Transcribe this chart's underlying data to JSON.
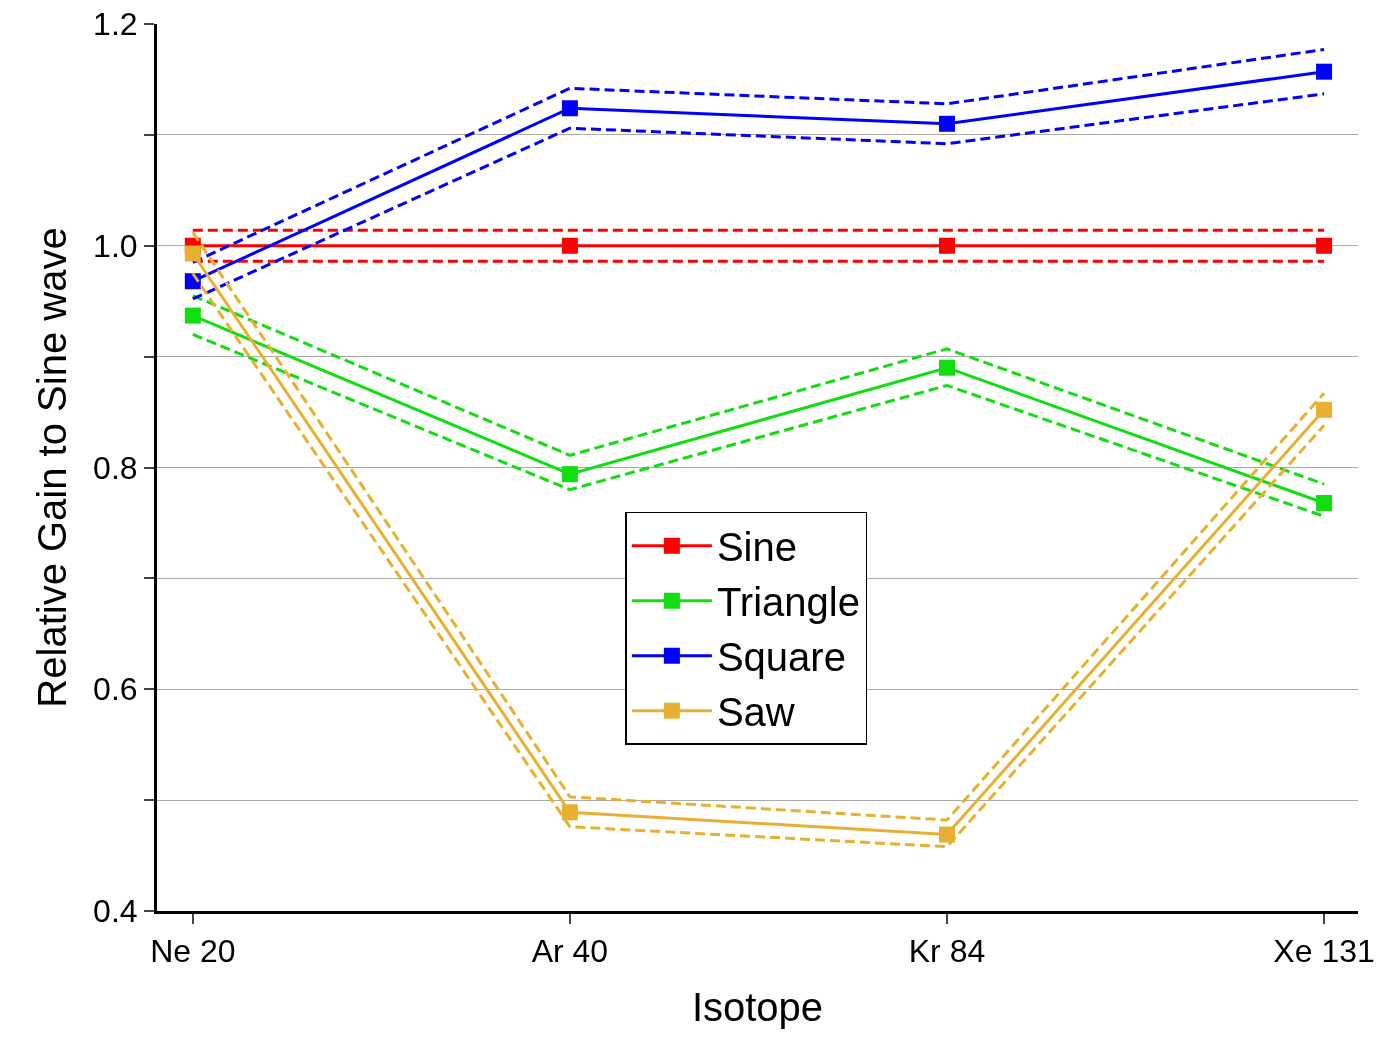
{
  "chart_data": {
    "type": "line",
    "xlabel": "Isotope",
    "ylabel": "Relative Gain to Sine wave",
    "categories": [
      "Ne 20",
      "Ar 40",
      "Kr 84",
      "Xe 131"
    ],
    "series": [
      {
        "name": "Sine",
        "color": "#ff0000",
        "values": [
          1.0,
          1.0,
          1.0,
          1.0
        ]
      },
      {
        "color": "#ff0000",
        "values": [
          0.986,
          0.986,
          0.986,
          0.986
        ],
        "line_style": "dashed",
        "marker": "none"
      },
      {
        "color": "#ff0000",
        "values": [
          1.014,
          1.014,
          1.014,
          1.014
        ],
        "line_style": "dashed",
        "marker": "none"
      },
      {
        "name": "Triangle",
        "color": "#11dd11",
        "values": [
          0.937,
          0.794,
          0.89,
          0.768
        ]
      },
      {
        "color": "#11dd11",
        "values": [
          0.92,
          0.78,
          0.874,
          0.756
        ],
        "line_style": "dashed",
        "marker": "none"
      },
      {
        "color": "#11dd11",
        "values": [
          0.955,
          0.811,
          0.907,
          0.785
        ],
        "line_style": "dashed",
        "marker": "none"
      },
      {
        "name": "Square",
        "color": "#0000ff",
        "values": [
          0.968,
          1.124,
          1.11,
          1.157
        ]
      },
      {
        "color": "#0000ff",
        "values": [
          0.952,
          1.106,
          1.092,
          1.137
        ],
        "line_style": "dashed",
        "marker": "none"
      },
      {
        "color": "#0000ff",
        "values": [
          0.985,
          1.142,
          1.128,
          1.177
        ],
        "line_style": "dashed",
        "marker": "none"
      },
      {
        "name": "Saw",
        "color": "#e8b030",
        "values": [
          0.993,
          0.489,
          0.469,
          0.852
        ]
      },
      {
        "color": "#e8b030",
        "values": [
          0.975,
          0.476,
          0.458,
          0.838
        ],
        "line_style": "dashed",
        "marker": "none"
      },
      {
        "color": "#e8b030",
        "values": [
          1.012,
          0.503,
          0.482,
          0.867
        ],
        "line_style": "dashed",
        "marker": "none"
      }
    ],
    "ylim": [
      0.4,
      1.2
    ],
    "yticks": [
      0.4,
      {
        "value": 0.5,
        "label": null
      },
      0.6,
      {
        "value": 0.7,
        "label": null
      },
      0.8,
      {
        "value": 0.9,
        "label": null
      },
      {
        "value": 1.0,
        "label": "1.0"
      },
      {
        "value": 1.1,
        "label": null
      },
      1.2
    ],
    "grid": "y",
    "legend": "center",
    "marker": "square",
    "line_style": "solid"
  }
}
